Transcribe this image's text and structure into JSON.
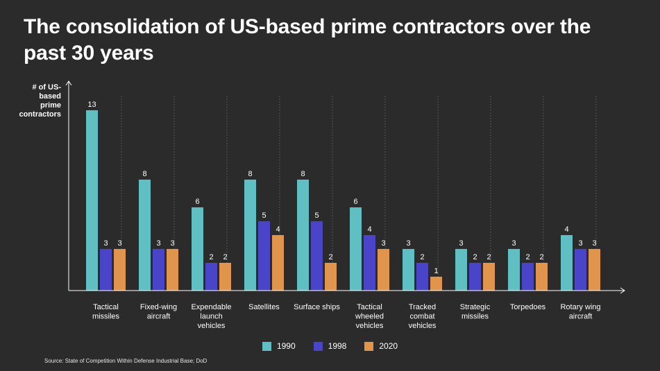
{
  "title": "The consolidation of US-based prime contractors over the past 30 years",
  "source": "Source: State of Competition Within Defense Industrial Base; DoD",
  "colors": {
    "background": "#2b2b2b",
    "1990": "#5fbfc3",
    "1998": "#4a45c8",
    "2020": "#e0944c",
    "grid": "#6a6a6a"
  },
  "chart_data": {
    "type": "bar",
    "title": "The consolidation of US-based prime contractors over the past 30 years",
    "ylabel": "# of US-based prime contractors",
    "xlabel": "",
    "ylim": [
      0,
      13
    ],
    "grid": "vertical separators",
    "legend_position": "bottom-center",
    "categories": [
      [
        "Tactical",
        "missiles"
      ],
      [
        "Fixed-wing",
        "aircraft"
      ],
      [
        "Expendable",
        "launch",
        "vehicles"
      ],
      [
        "Satellites"
      ],
      [
        "Surface ships"
      ],
      [
        "Tactical",
        "wheeled",
        "vehicles"
      ],
      [
        "Tracked",
        "combat",
        "vehicles"
      ],
      [
        "Strategic",
        "missiles"
      ],
      [
        "Torpedoes"
      ],
      [
        "Rotary wing",
        "aircraft"
      ]
    ],
    "series": [
      {
        "name": "1990",
        "color": "#5fbfc3",
        "values": [
          13,
          8,
          6,
          8,
          8,
          6,
          3,
          3,
          3,
          4
        ]
      },
      {
        "name": "1998",
        "color": "#4a45c8",
        "values": [
          3,
          3,
          2,
          5,
          5,
          4,
          2,
          2,
          2,
          3
        ]
      },
      {
        "name": "2020",
        "color": "#e0944c",
        "values": [
          3,
          3,
          2,
          4,
          2,
          3,
          1,
          2,
          2,
          3
        ]
      }
    ]
  }
}
